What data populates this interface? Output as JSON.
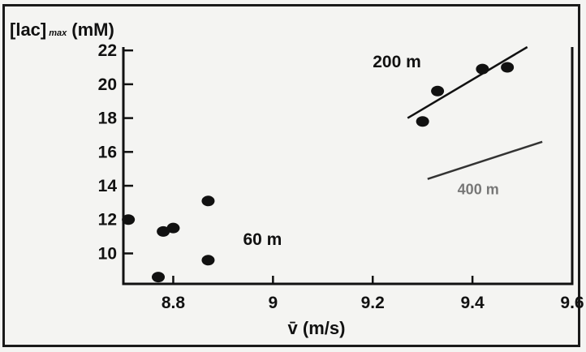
{
  "chart_data": {
    "type": "scatter",
    "ylabel_main": "[lac]",
    "ylabel_sub": "max",
    "ylabel_unit": "(mM)",
    "xlabel": "v̄  (m/s)",
    "xlim": [
      8.7,
      9.6
    ],
    "ylim": [
      8.2,
      22.2
    ],
    "x_ticks": [
      8.8,
      9,
      9.2,
      9.4,
      9.6
    ],
    "x_tick_labels": [
      "8.8",
      "9",
      "9.2",
      "9.4",
      "9.6"
    ],
    "y_ticks": [
      10,
      12,
      14,
      16,
      18,
      20,
      22
    ],
    "y_tick_labels": [
      "10",
      "12",
      "14",
      "16",
      "18",
      "20",
      "22"
    ],
    "grid": false,
    "colors": {
      "ink": "#111111",
      "faded": "#777777",
      "background": "#f4f4f2"
    },
    "series": [
      {
        "name": "60 m",
        "points": [
          {
            "x": 8.71,
            "y": 12.0
          },
          {
            "x": 8.78,
            "y": 11.3
          },
          {
            "x": 8.8,
            "y": 11.5
          },
          {
            "x": 8.77,
            "y": 8.6
          },
          {
            "x": 8.87,
            "y": 13.1
          },
          {
            "x": 8.87,
            "y": 9.6
          }
        ]
      },
      {
        "name": "200 m",
        "points": [
          {
            "x": 9.3,
            "y": 17.8
          },
          {
            "x": 9.33,
            "y": 19.6
          },
          {
            "x": 9.42,
            "y": 20.9
          },
          {
            "x": 9.47,
            "y": 21.0
          }
        ],
        "trend": [
          {
            "x": 9.27,
            "y": 18.0
          },
          {
            "x": 9.51,
            "y": 22.2
          }
        ]
      },
      {
        "name": "400 m",
        "points": [],
        "trend": [
          {
            "x": 9.31,
            "y": 14.4
          },
          {
            "x": 9.54,
            "y": 16.6
          }
        ]
      }
    ],
    "annotations": [
      {
        "text": "200 m",
        "x": 9.2,
        "y": 21.0
      },
      {
        "text": "60 m",
        "x": 8.94,
        "y": 10.5
      },
      {
        "text": "400 m",
        "x": 9.37,
        "y": 13.5
      }
    ]
  }
}
